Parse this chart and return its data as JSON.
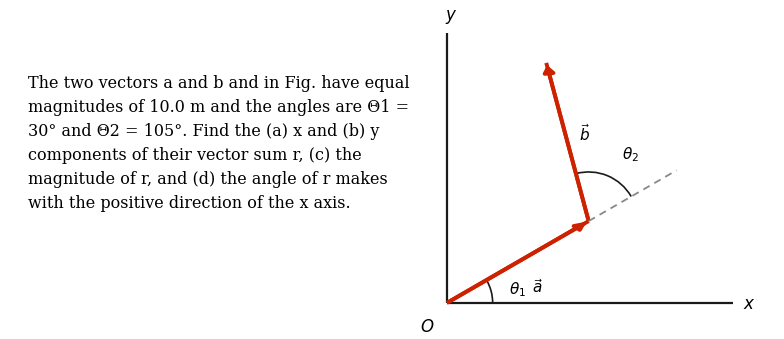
{
  "theta1_deg": 30,
  "theta2_deg": 105,
  "magnitude": 1.0,
  "vector_color": "#CC2200",
  "axis_color": "#1a1a1a",
  "dashed_color": "#888888",
  "fig_width": 7.84,
  "fig_height": 3.39,
  "dpi": 100,
  "label_a": "$\\vec{a}$",
  "label_b": "$\\vec{b}$",
  "label_theta1": "$\\theta_1$",
  "label_theta2": "$\\theta_2$",
  "label_O": "$O$",
  "label_x": "$x$",
  "label_y": "$y$",
  "text_lines": [
    "The two vectors a and b and in Fig. have equal",
    "magnitudes of 10.0 m and the angles are Θ1 =",
    "30° and Θ2 = 105°. Find the (a) x and (b) y",
    "components of their vector sum r, (c) the",
    "magnitude of r, and (d) the angle of r makes",
    "with the positive direction of the x axis."
  ],
  "fontsize_text": 11.5,
  "fontsize_labels": 11,
  "fontsize_axis_labels": 12
}
